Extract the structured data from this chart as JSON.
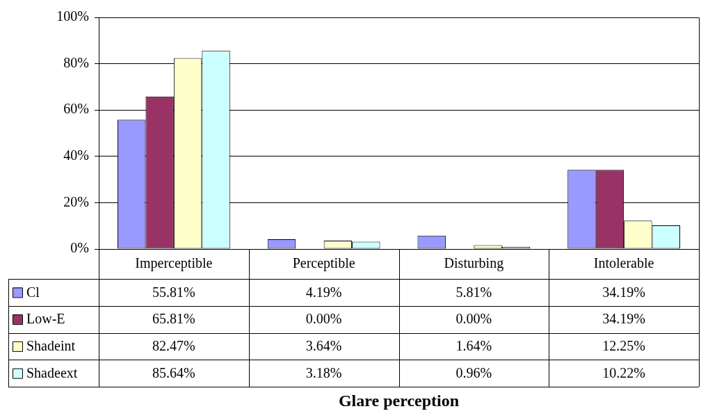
{
  "chart_data": {
    "type": "bar",
    "annotations": [
      "Glare perception"
    ],
    "categories": [
      "Imperceptible",
      "Perceptible",
      "Disturbing",
      "Intolerable"
    ],
    "series": [
      {
        "name": "Cl",
        "color": "#9999ff",
        "values": [
          55.81,
          4.19,
          5.81,
          34.19
        ],
        "value_labels": [
          "55.81%",
          "4.19%",
          "5.81%",
          "34.19%"
        ]
      },
      {
        "name": "Low-E",
        "color": "#993366",
        "values": [
          65.81,
          0,
          0,
          34.19
        ],
        "value_labels": [
          "65.81%",
          "0.00%",
          "0.00%",
          "34.19%"
        ]
      },
      {
        "name": "Shadeint",
        "color": "#ffffcc",
        "values": [
          82.47,
          3.64,
          1.64,
          12.25
        ],
        "value_labels": [
          "82.47%",
          "3.64%",
          "1.64%",
          "12.25%"
        ]
      },
      {
        "name": "Shadeext",
        "color": "#ccffff",
        "values": [
          85.64,
          3.18,
          0.96,
          10.22
        ],
        "value_labels": [
          "85.64%",
          "3.18%",
          "0.96%",
          "10.22%"
        ]
      }
    ],
    "ylim": [
      0,
      100
    ],
    "yticks": [
      {
        "value": 0,
        "label": "0%"
      },
      {
        "value": 20,
        "label": "20%"
      },
      {
        "value": 40,
        "label": "40%"
      },
      {
        "value": 60,
        "label": "60%"
      },
      {
        "value": 80,
        "label": "80%"
      },
      {
        "value": 100,
        "label": "100%"
      }
    ],
    "grid": "y",
    "legend": "bottom left"
  }
}
